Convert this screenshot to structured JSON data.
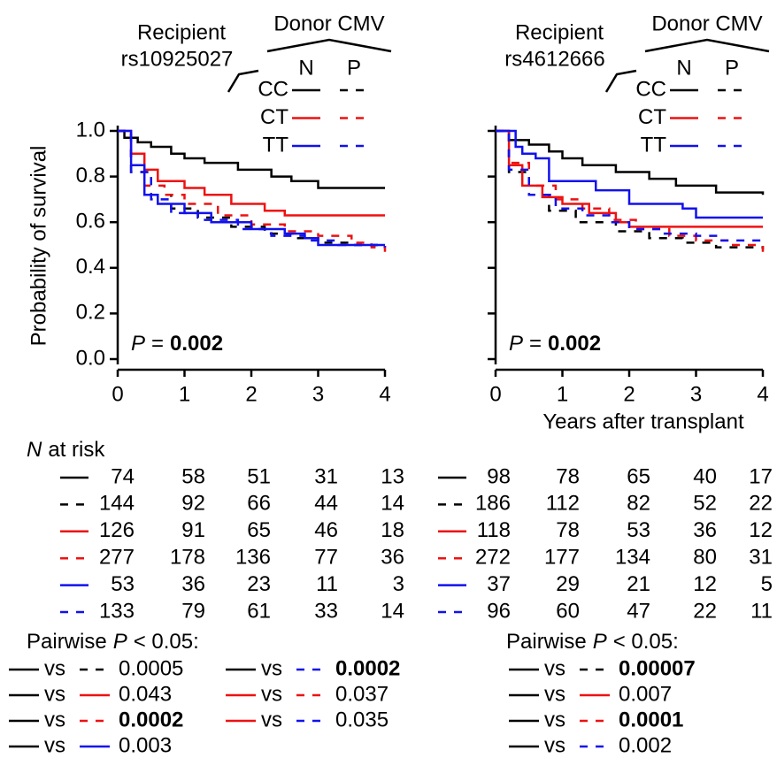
{
  "chart_data": [
    {
      "type": "line",
      "step": true,
      "y_label": "Probability of survival",
      "legend": {
        "recipient": "Recipient",
        "snp": "rs10925027",
        "donor_title": "Donor CMV",
        "columns": [
          "N",
          "P"
        ],
        "rows": [
          "CC",
          "CT",
          "TT"
        ]
      },
      "annotation": {
        "var": "P",
        "eq": "=",
        "value": "0.002"
      },
      "xlim": [
        0,
        4
      ],
      "xticks": [
        0,
        1,
        2,
        3,
        4
      ],
      "ylim": [
        0,
        1
      ],
      "yticks": [
        {
          "value": 0,
          "label": "0.0"
        },
        0.2,
        0.4,
        0.6,
        0.8,
        {
          "value": 1,
          "label": "1.0"
        }
      ],
      "ytick_labels": true,
      "series": [
        {
          "color": "#000000",
          "dash": false,
          "x": [
            0,
            0.1,
            0.3,
            0.5,
            0.8,
            1.0,
            1.3,
            1.8,
            2.3,
            2.6,
            3.0,
            4.0
          ],
          "values": [
            1.0,
            0.97,
            0.95,
            0.93,
            0.9,
            0.88,
            0.86,
            0.83,
            0.8,
            0.78,
            0.75,
            0.75
          ]
        },
        {
          "color": "#000000",
          "dash": true,
          "x": [
            0,
            0.2,
            0.5,
            0.8,
            1.2,
            1.7,
            2.2,
            2.7,
            3.0,
            3.5,
            4.0
          ],
          "values": [
            1.0,
            0.82,
            0.72,
            0.66,
            0.62,
            0.58,
            0.55,
            0.53,
            0.51,
            0.5,
            0.5
          ]
        },
        {
          "color": "#ee1111",
          "dash": false,
          "x": [
            0,
            0.2,
            0.4,
            0.6,
            1.0,
            1.3,
            1.7,
            2.2,
            2.5,
            4.0
          ],
          "values": [
            1.0,
            0.9,
            0.83,
            0.78,
            0.75,
            0.72,
            0.68,
            0.65,
            0.63,
            0.63
          ]
        },
        {
          "color": "#ee1111",
          "dash": true,
          "x": [
            0,
            0.2,
            0.4,
            0.7,
            1.0,
            1.5,
            2.0,
            2.5,
            3.0,
            3.5,
            3.8,
            4.0
          ],
          "values": [
            1.0,
            0.85,
            0.76,
            0.72,
            0.68,
            0.63,
            0.59,
            0.56,
            0.54,
            0.51,
            0.49,
            0.47
          ]
        },
        {
          "color": "#1111ee",
          "dash": false,
          "x": [
            0,
            0.2,
            0.4,
            0.6,
            1.0,
            1.4,
            2.0,
            2.5,
            2.8,
            3.0,
            4.0
          ],
          "values": [
            1.0,
            0.85,
            0.72,
            0.68,
            0.64,
            0.6,
            0.57,
            0.55,
            0.53,
            0.5,
            0.5
          ]
        },
        {
          "color": "#1111ee",
          "dash": true,
          "x": [
            0,
            0.2,
            0.5,
            0.8,
            1.2,
            1.8,
            2.3,
            2.8,
            3.3,
            4.0
          ],
          "values": [
            1.0,
            0.82,
            0.7,
            0.64,
            0.61,
            0.57,
            0.54,
            0.52,
            0.5,
            0.49
          ]
        }
      ],
      "at_risk": {
        "var": "N",
        "title": "at risk",
        "rows": [
          [
            74,
            58,
            51,
            31,
            13
          ],
          [
            144,
            92,
            66,
            44,
            14
          ],
          [
            126,
            91,
            65,
            46,
            18
          ],
          [
            277,
            178,
            136,
            77,
            36
          ],
          [
            53,
            36,
            23,
            11,
            3
          ],
          [
            133,
            79,
            61,
            33,
            14
          ]
        ]
      },
      "pairwise": {
        "title": "Pairwise",
        "var": "P",
        "condition": "< 0.05:",
        "vs": "vs",
        "items": [
          {
            "a": 0,
            "b": 1,
            "p": 0.0005,
            "bold": false
          },
          {
            "a": 0,
            "b": 2,
            "p": 0.043,
            "bold": false
          },
          {
            "a": 0,
            "b": 3,
            "p": 0.0002,
            "bold": true
          },
          {
            "a": 0,
            "b": 4,
            "p": 0.003,
            "bold": false
          },
          {
            "a": 0,
            "b": 5,
            "p": 0.0002,
            "bold": true
          },
          {
            "a": 2,
            "b": 3,
            "p": 0.037,
            "bold": false
          },
          {
            "a": 2,
            "b": 5,
            "p": 0.035,
            "bold": false
          }
        ]
      }
    },
    {
      "type": "line",
      "step": true,
      "x_label": "Years after transplant",
      "legend": {
        "recipient": "Recipient",
        "snp": "rs4612666",
        "donor_title": "Donor CMV",
        "columns": [
          "N",
          "P"
        ],
        "rows": [
          "CC",
          "CT",
          "TT"
        ]
      },
      "annotation": {
        "var": "P",
        "eq": "=",
        "value": "0.002"
      },
      "xlim": [
        0,
        4
      ],
      "xticks": [
        0,
        1,
        2,
        3,
        4
      ],
      "ylim": [
        0,
        1
      ],
      "yticks": [
        0,
        0.2,
        0.4,
        0.6,
        0.8,
        1
      ],
      "ytick_labels": false,
      "series": [
        {
          "color": "#000000",
          "dash": false,
          "x": [
            0,
            0.2,
            0.5,
            0.8,
            1.0,
            1.3,
            1.8,
            2.3,
            2.7,
            3.3,
            4.0
          ],
          "values": [
            1.0,
            0.96,
            0.94,
            0.91,
            0.88,
            0.85,
            0.82,
            0.79,
            0.76,
            0.73,
            0.72
          ]
        },
        {
          "color": "#000000",
          "dash": true,
          "x": [
            0,
            0.2,
            0.5,
            0.8,
            1.2,
            1.8,
            2.3,
            2.8,
            3.3,
            4.0
          ],
          "values": [
            1.0,
            0.82,
            0.72,
            0.65,
            0.6,
            0.56,
            0.53,
            0.51,
            0.49,
            0.48
          ]
        },
        {
          "color": "#ee1111",
          "dash": false,
          "x": [
            0,
            0.2,
            0.4,
            0.7,
            1.0,
            1.4,
            1.8,
            2.0,
            4.0
          ],
          "values": [
            1.0,
            0.85,
            0.76,
            0.71,
            0.68,
            0.64,
            0.6,
            0.58,
            0.58
          ]
        },
        {
          "color": "#ee1111",
          "dash": true,
          "x": [
            0,
            0.2,
            0.5,
            0.9,
            1.3,
            1.7,
            2.1,
            2.6,
            3.0,
            3.5,
            4.0
          ],
          "values": [
            1.0,
            0.86,
            0.76,
            0.7,
            0.66,
            0.61,
            0.57,
            0.54,
            0.52,
            0.5,
            0.47
          ]
        },
        {
          "color": "#1111ee",
          "dash": false,
          "x": [
            0,
            0.3,
            0.4,
            0.6,
            0.8,
            1.5,
            2.0,
            2.8,
            3.0,
            4.0
          ],
          "values": [
            1.0,
            0.93,
            0.9,
            0.88,
            0.78,
            0.74,
            0.68,
            0.66,
            0.62,
            0.62
          ]
        },
        {
          "color": "#1111ee",
          "dash": true,
          "x": [
            0,
            0.2,
            0.5,
            0.9,
            1.3,
            1.7,
            2.0,
            2.5,
            3.0,
            3.3,
            4.0
          ],
          "values": [
            1.0,
            0.83,
            0.72,
            0.66,
            0.63,
            0.6,
            0.57,
            0.55,
            0.54,
            0.52,
            0.52
          ]
        }
      ],
      "at_risk": {
        "rows": [
          [
            98,
            78,
            65,
            40,
            17
          ],
          [
            186,
            112,
            82,
            52,
            22
          ],
          [
            118,
            78,
            53,
            36,
            12
          ],
          [
            272,
            177,
            134,
            80,
            31
          ],
          [
            37,
            29,
            21,
            12,
            5
          ],
          [
            96,
            60,
            47,
            22,
            11
          ]
        ]
      },
      "pairwise": {
        "title": "Pairwise",
        "var": "P",
        "condition": "< 0.05:",
        "vs": "vs",
        "items": [
          {
            "a": 0,
            "b": 1,
            "p": 7e-05,
            "bold": true
          },
          {
            "a": 0,
            "b": 2,
            "p": 0.007,
            "bold": false
          },
          {
            "a": 0,
            "b": 3,
            "p": 0.0001,
            "bold": true
          },
          {
            "a": 0,
            "b": 5,
            "p": 0.002,
            "bold": false
          }
        ]
      }
    }
  ]
}
